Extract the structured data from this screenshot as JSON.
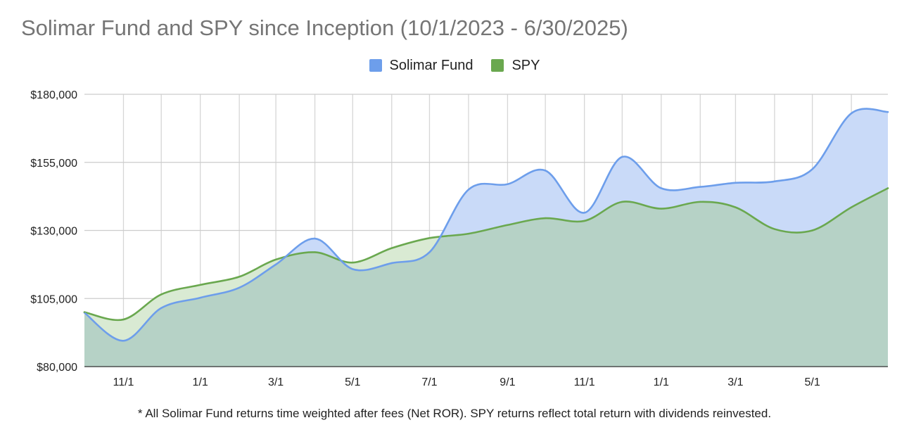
{
  "chart_data": {
    "type": "area",
    "title": "Solimar Fund and SPY since Inception (10/1/2023 - 6/30/2025)",
    "footnote": "* All Solimar Fund returns time weighted after fees (Net ROR). SPY returns reflect total return with dividends reinvested.",
    "x": [
      "10/1/2023",
      "11/1/2023",
      "12/1/2023",
      "1/1/2024",
      "2/1/2024",
      "3/1/2024",
      "4/1/2024",
      "5/1/2024",
      "6/1/2024",
      "7/1/2024",
      "8/1/2024",
      "9/1/2024",
      "10/1/2024",
      "11/1/2024",
      "12/1/2024",
      "1/1/2025",
      "2/1/2025",
      "3/1/2025",
      "4/1/2025",
      "5/1/2025",
      "6/1/2025",
      "6/30/2025"
    ],
    "x_tick_labels": [
      "11/1",
      "1/1",
      "3/1",
      "5/1",
      "7/1",
      "9/1",
      "11/1",
      "1/1",
      "3/1",
      "5/1"
    ],
    "series": [
      {
        "name": "Solimar Fund",
        "color": "#6d9eeb",
        "fill": "#c9daf8",
        "values": [
          99800,
          89500,
          101500,
          105300,
          109000,
          117500,
          127000,
          115800,
          118000,
          122000,
          145000,
          147000,
          152000,
          136500,
          157000,
          145500,
          146000,
          147500,
          148000,
          152500,
          173000,
          173500
        ]
      },
      {
        "name": "SPY",
        "color": "#6aa84f",
        "fill": "#d9ead3",
        "values": [
          100000,
          97300,
          106500,
          110000,
          113000,
          119300,
          122000,
          118200,
          123500,
          127200,
          128800,
          132000,
          134500,
          133500,
          140500,
          138000,
          140500,
          138500,
          130500,
          130000,
          138500,
          145500
        ]
      }
    ],
    "ylim": [
      80000,
      180000
    ],
    "y_ticks": [
      80000,
      105000,
      130000,
      155000,
      180000
    ],
    "y_tick_labels": [
      "$80,000",
      "$105,000",
      "$130,000",
      "$155,000",
      "$180,000"
    ],
    "grid": true,
    "legend_position": "top-center",
    "overlap_fill": "#b6d2c6"
  }
}
